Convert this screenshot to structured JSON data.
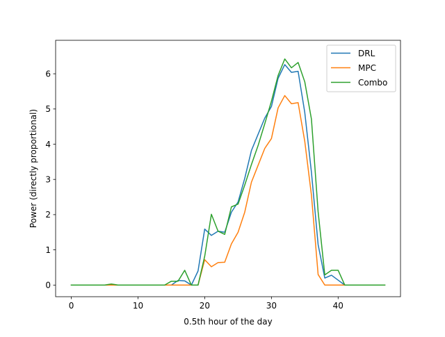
{
  "chart_data": {
    "type": "line",
    "title": "",
    "xlabel": "0.5th hour of the day",
    "ylabel": "Power (directly proportional)",
    "xlim": [
      -2.35,
      49.35
    ],
    "ylim": [
      -0.33,
      6.95
    ],
    "xticks": [
      0,
      10,
      20,
      30,
      40
    ],
    "yticks": [
      0,
      1,
      2,
      3,
      4,
      5,
      6
    ],
    "grid": false,
    "legend_position": "top-right",
    "x": [
      0,
      1,
      2,
      3,
      4,
      5,
      6,
      7,
      8,
      9,
      10,
      11,
      12,
      13,
      14,
      15,
      16,
      17,
      18,
      19,
      20,
      21,
      22,
      23,
      24,
      25,
      26,
      27,
      28,
      29,
      30,
      31,
      32,
      33,
      34,
      35,
      36,
      37,
      38,
      39,
      40,
      41,
      42,
      43,
      44,
      45,
      46,
      47
    ],
    "series": [
      {
        "name": "DRL",
        "color": "#1f77b4",
        "values": [
          0,
          0,
          0,
          0,
          0,
          0,
          0,
          0,
          0,
          0,
          0,
          0,
          0,
          0,
          0,
          0,
          0.13,
          0.12,
          0,
          0.4,
          1.59,
          1.41,
          1.53,
          1.5,
          2.07,
          2.36,
          3.03,
          3.82,
          4.28,
          4.74,
          5.07,
          5.87,
          6.26,
          6.04,
          6.07,
          4.9,
          3.2,
          1.15,
          0.2,
          0.28,
          0.14,
          0,
          0,
          0,
          0,
          0,
          0,
          0
        ]
      },
      {
        "name": "MPC",
        "color": "#ff7f0e",
        "values": [
          0,
          0,
          0,
          0,
          0,
          0,
          0,
          0,
          0,
          0,
          0,
          0,
          0,
          0,
          0,
          0,
          0,
          0,
          0,
          0,
          0.72,
          0.52,
          0.64,
          0.65,
          1.17,
          1.5,
          2.07,
          2.92,
          3.4,
          3.88,
          4.16,
          5.03,
          5.38,
          5.15,
          5.18,
          4.08,
          2.55,
          0.3,
          0,
          0,
          0,
          0,
          0,
          0,
          0,
          0,
          0,
          0
        ]
      },
      {
        "name": "Combo",
        "color": "#2ca02c",
        "values": [
          0,
          0,
          0,
          0,
          0,
          0,
          0.03,
          0,
          0,
          0,
          0,
          0,
          0,
          0,
          0,
          0.11,
          0.11,
          0.42,
          0,
          0,
          0.82,
          2.01,
          1.53,
          1.44,
          2.22,
          2.3,
          2.84,
          3.42,
          3.96,
          4.58,
          5.22,
          5.95,
          6.42,
          6.17,
          6.32,
          5.77,
          4.71,
          2.08,
          0.29,
          0.42,
          0.42,
          0,
          0,
          0,
          0,
          0,
          0,
          0
        ]
      }
    ]
  }
}
